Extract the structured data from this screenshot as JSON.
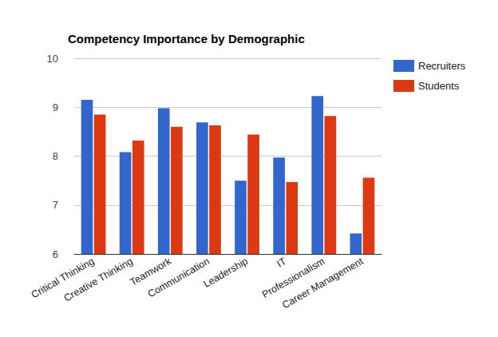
{
  "chart_data": {
    "type": "bar",
    "title": "Competency Importance by Demographic",
    "categories": [
      "Critical Thinking",
      "Creative Thinking",
      "Teamwork",
      "Communication",
      "Leadership",
      "IT",
      "Professionalism",
      "Career Management"
    ],
    "series": [
      {
        "name": "Recruiters",
        "color": "#3366cc",
        "values": [
          9.15,
          8.08,
          8.98,
          8.69,
          7.5,
          7.97,
          9.23,
          6.42
        ]
      },
      {
        "name": "Students",
        "color": "#dc3912",
        "values": [
          8.85,
          8.32,
          8.6,
          8.63,
          8.44,
          7.47,
          8.82,
          7.56
        ]
      }
    ],
    "ylim": [
      6,
      10
    ],
    "yticks": [
      6,
      7,
      8,
      9,
      10
    ],
    "grid": true,
    "legend": "right"
  }
}
